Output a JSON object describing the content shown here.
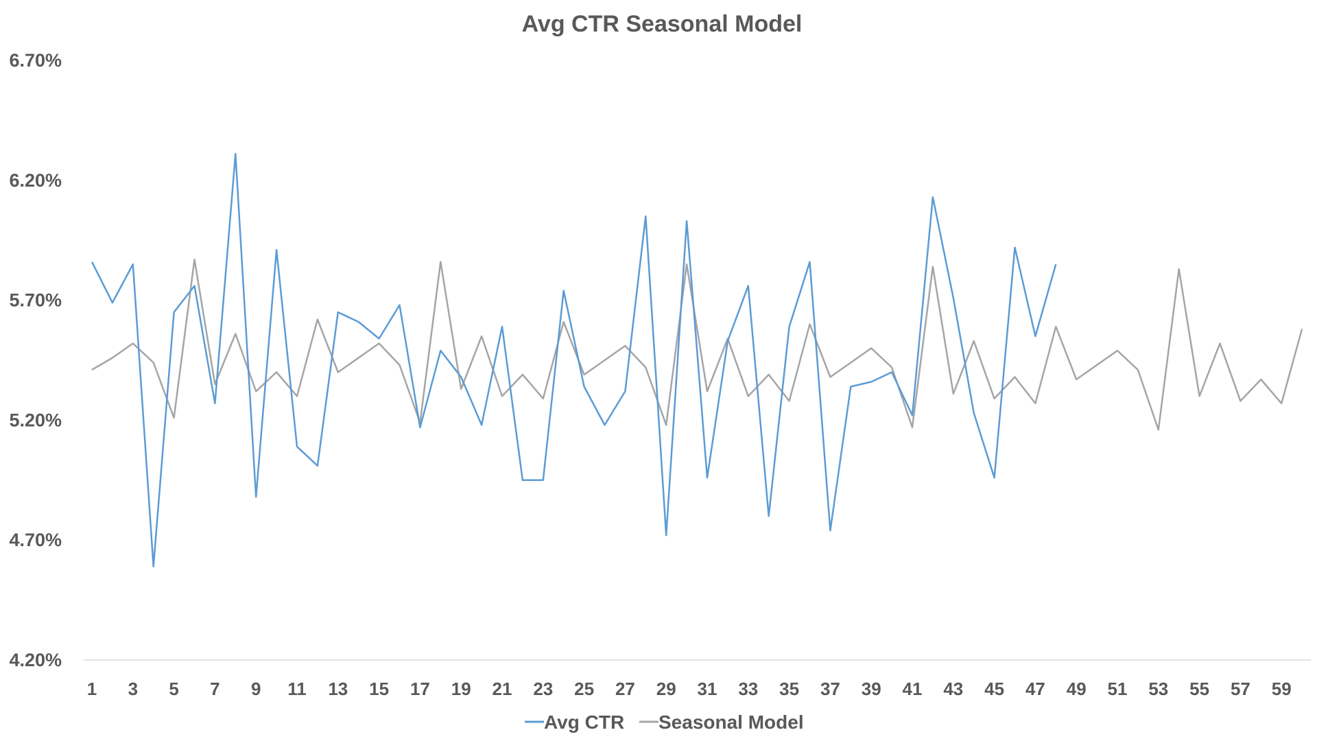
{
  "chart_data": {
    "type": "line",
    "title": "Avg CTR Seasonal Model",
    "xlabel": "",
    "ylabel": "",
    "ylim": [
      4.2,
      6.7
    ],
    "yticks": [
      "4.20%",
      "4.70%",
      "5.20%",
      "5.70%",
      "6.20%",
      "6.70%"
    ],
    "ytick_values": [
      4.2,
      4.7,
      5.2,
      5.7,
      6.2,
      6.7
    ],
    "xlim": [
      1,
      60
    ],
    "xticks": [
      "1",
      "3",
      "5",
      "7",
      "9",
      "11",
      "13",
      "15",
      "17",
      "19",
      "21",
      "23",
      "25",
      "27",
      "29",
      "31",
      "33",
      "35",
      "37",
      "39",
      "41",
      "43",
      "45",
      "47",
      "49",
      "51",
      "53",
      "55",
      "57",
      "59"
    ],
    "xtick_values": [
      1,
      3,
      5,
      7,
      9,
      11,
      13,
      15,
      17,
      19,
      21,
      23,
      25,
      27,
      29,
      31,
      33,
      35,
      37,
      39,
      41,
      43,
      45,
      47,
      49,
      51,
      53,
      55,
      57,
      59
    ],
    "grid": false,
    "legend_position": "bottom",
    "series": [
      {
        "name": "Avg CTR",
        "color": "#5B9BD5",
        "values": [
          5.86,
          5.69,
          5.85,
          4.59,
          5.65,
          5.76,
          5.27,
          6.31,
          4.88,
          5.91,
          5.09,
          5.01,
          5.65,
          5.61,
          5.54,
          5.68,
          5.17,
          5.49,
          5.38,
          5.18,
          5.59,
          4.95,
          4.95,
          5.74,
          5.34,
          5.18,
          5.32,
          6.05,
          4.72,
          6.03,
          4.96,
          5.53,
          5.76,
          4.8,
          5.59,
          5.86,
          4.74,
          5.34,
          5.36,
          5.4,
          5.22,
          6.13,
          5.71,
          5.23,
          4.96,
          5.92,
          5.55,
          5.85
        ]
      },
      {
        "name": "Seasonal Model",
        "color": "#A5A5A5",
        "values": [
          5.41,
          5.46,
          5.52,
          5.44,
          5.21,
          5.87,
          5.35,
          5.56,
          5.32,
          5.4,
          5.3,
          5.62,
          5.4,
          5.46,
          5.52,
          5.43,
          5.19,
          5.86,
          5.33,
          5.55,
          5.3,
          5.39,
          5.29,
          5.61,
          5.39,
          5.45,
          5.51,
          5.42,
          5.18,
          5.85,
          5.32,
          5.54,
          5.3,
          5.39,
          5.28,
          5.6,
          5.38,
          5.44,
          5.5,
          5.42,
          5.17,
          5.84,
          5.31,
          5.53,
          5.29,
          5.38,
          5.27,
          5.59,
          5.37,
          5.43,
          5.49,
          5.41,
          5.16,
          5.83,
          5.3,
          5.52,
          5.28,
          5.37,
          5.27,
          5.58
        ]
      }
    ]
  }
}
